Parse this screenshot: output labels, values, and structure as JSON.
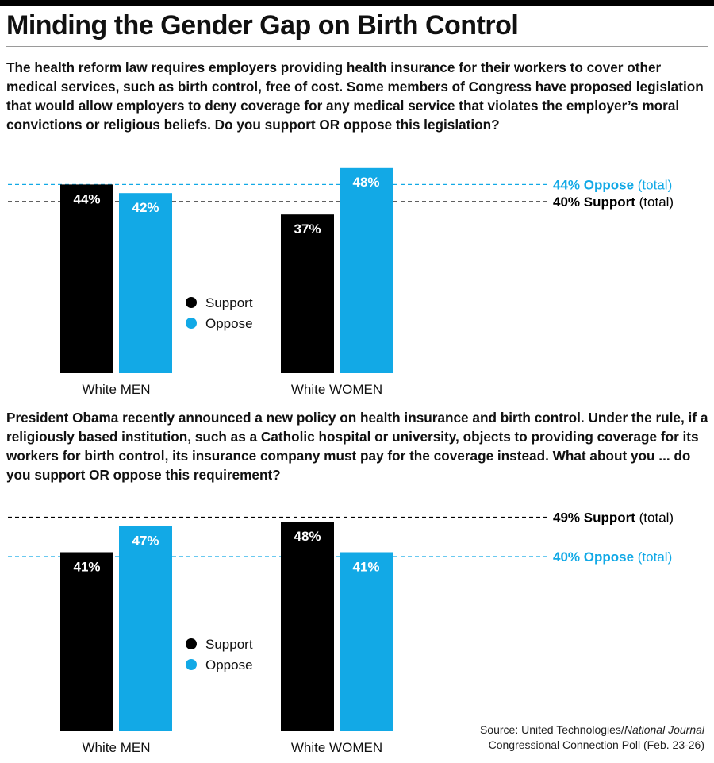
{
  "title": "Minding the Gender Gap on Birth Control",
  "colors": {
    "support": "#000000",
    "oppose": "#12a9e6",
    "text": "#111111"
  },
  "legend": {
    "support": "Support",
    "oppose": "Oppose"
  },
  "source": {
    "prefix": "Source: United Technologies/",
    "publication": "National Journal",
    "line2": "Congressional Connection Poll (Feb. 23-26)"
  },
  "chart_data": [
    {
      "type": "bar",
      "question": "The health reform law requires employers providing health insurance for their workers to cover other medical services, such as birth control, free of cost. Some members of Congress have proposed legislation that would allow employers to deny coverage for any medical service that violates the employer’s moral convictions or religious beliefs. Do you support OR oppose this legislation?",
      "categories": [
        "White MEN",
        "White WOMEN"
      ],
      "series": [
        {
          "name": "Support",
          "values": [
            44,
            37
          ],
          "labels": [
            "44%",
            "37%"
          ]
        },
        {
          "name": "Oppose",
          "values": [
            42,
            48
          ],
          "labels": [
            "42%",
            "48%"
          ]
        }
      ],
      "reference_lines": [
        {
          "series": "Oppose",
          "value": 44,
          "bold": "44% Oppose",
          "suffix": "(total)"
        },
        {
          "series": "Support",
          "value": 40,
          "bold": "40% Support",
          "suffix": "(total)"
        }
      ],
      "ylim": [
        0,
        48
      ],
      "legend_placement": "center"
    },
    {
      "type": "bar",
      "question": "President Obama recently announced a new policy on health insurance and birth control. Under the rule, if a religiously based institution, such as a Catholic hospital or university, objects to providing coverage for its workers for birth control, its insurance company must pay for the coverage instead. What about you ... do you support OR oppose this requirement?",
      "categories": [
        "White MEN",
        "White WOMEN"
      ],
      "series": [
        {
          "name": "Support",
          "values": [
            41,
            48
          ],
          "labels": [
            "41%",
            "48%"
          ]
        },
        {
          "name": "Oppose",
          "values": [
            47,
            41
          ],
          "labels": [
            "47%",
            "41%"
          ]
        }
      ],
      "reference_lines": [
        {
          "series": "Support",
          "value": 49,
          "bold": "49% Support",
          "suffix": "(total)"
        },
        {
          "series": "Oppose",
          "value": 40,
          "bold": "40% Oppose",
          "suffix": "(total)"
        }
      ],
      "ylim": [
        0,
        48
      ],
      "legend_placement": "center"
    }
  ]
}
